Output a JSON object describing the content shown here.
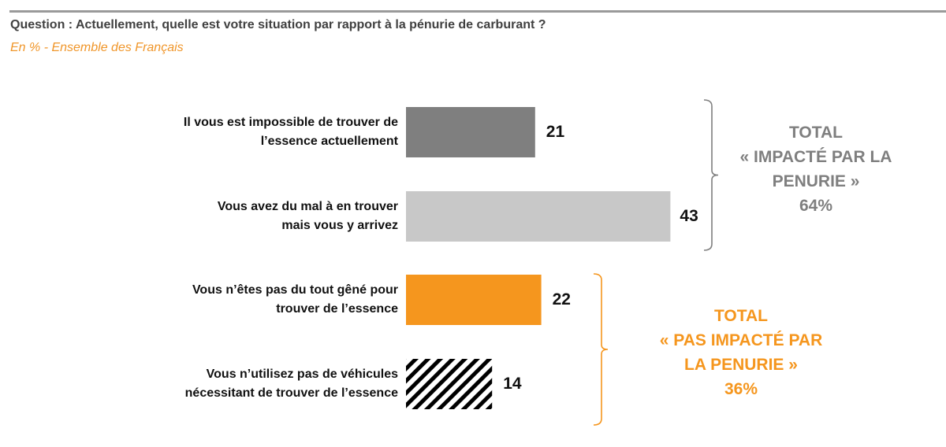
{
  "header": {
    "question": "Question : Actuellement, quelle est votre situation par rapport à la pénurie de carburant ?",
    "subtitle": "En % - Ensemble des Français"
  },
  "chart_data": {
    "type": "bar",
    "orientation": "horizontal",
    "unit": "%",
    "categories": [
      "Il vous est impossible de trouver de l’essence actuellement",
      "Vous avez du mal à en trouver mais vous y arrivez",
      "Vous n’êtes pas du tout gêné pour trouver de l’essence",
      "Vous n’utilisez pas de véhicules nécessitant de trouver de l’essence"
    ],
    "label_lines": [
      [
        "Il vous est impossible de trouver de",
        "l’essence actuellement"
      ],
      [
        "Vous avez du mal à en trouver",
        "mais vous y arrivez"
      ],
      [
        "Vous n’êtes pas du tout gêné pour",
        "trouver de l’essence"
      ],
      [
        "Vous n’utilisez pas de véhicules",
        "nécessitant de trouver de l’essence"
      ]
    ],
    "values": [
      21,
      43,
      22,
      14
    ],
    "value_labels": [
      "21",
      "43",
      "22",
      "14"
    ],
    "colors": [
      "#7f7f7f",
      "#c8c8c8",
      "#f5961e",
      "hatch"
    ],
    "groups": [
      {
        "lines": [
          "TOTAL",
          "« IMPACTÉ PAR LA",
          "PENURIE »",
          "64%"
        ],
        "color": "#7f7f7f",
        "value": 64
      },
      {
        "lines": [
          "TOTAL",
          "« PAS IMPACTÉ PAR",
          "LA PENURIE »",
          "36%"
        ],
        "color": "#f5961e",
        "value": 36
      }
    ]
  }
}
